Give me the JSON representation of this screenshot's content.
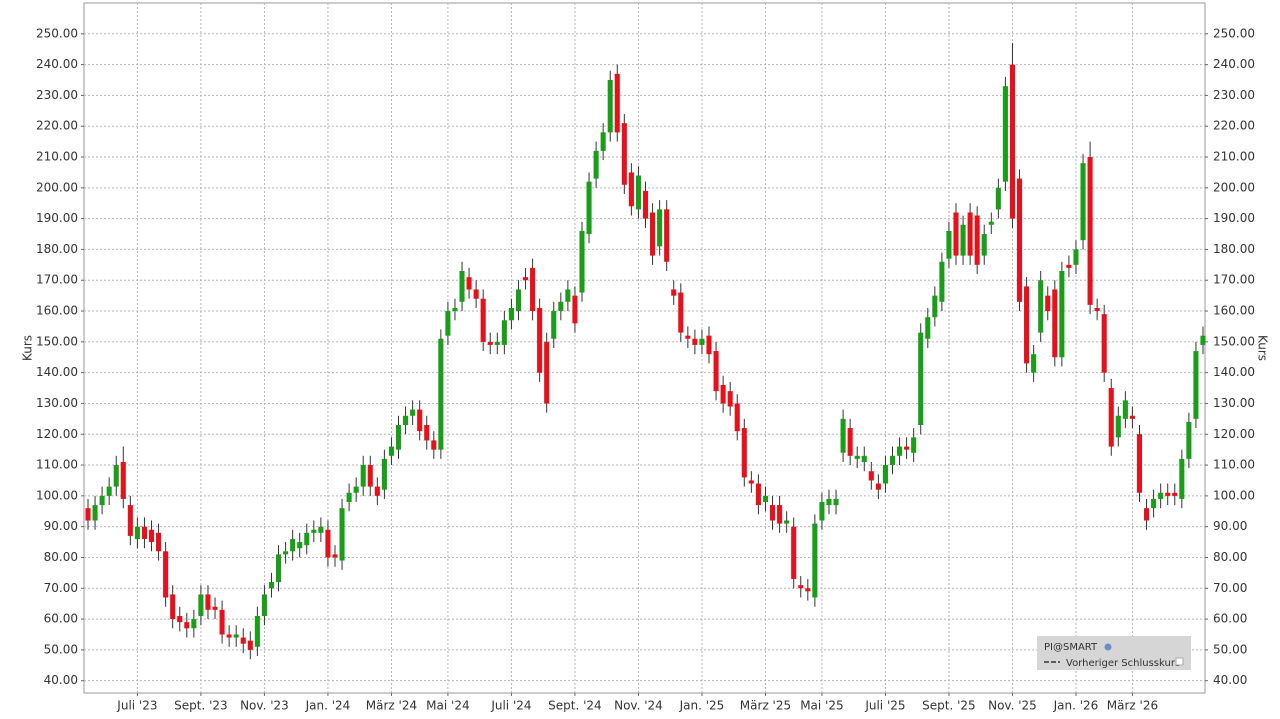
{
  "chart_data": {
    "type": "candlestick",
    "y_label": "Kurs",
    "legend": {
      "title": "PI@SMART",
      "entries": [
        "Vorheriger Schlusskurs"
      ]
    },
    "up_color": "#1a9e1a",
    "down_color": "#e8101a",
    "grid": true,
    "categories": [
      null,
      null,
      null,
      null,
      null,
      null,
      null,
      "Juli '23",
      null,
      null,
      null,
      null,
      null,
      null,
      null,
      null,
      "Sept. '23",
      null,
      null,
      null,
      null,
      null,
      null,
      null,
      null,
      "Nov. '23",
      null,
      null,
      null,
      null,
      null,
      null,
      null,
      null,
      "Jan. '24",
      null,
      null,
      null,
      null,
      null,
      null,
      null,
      null,
      "März '24",
      null,
      null,
      null,
      null,
      null,
      null,
      null,
      "Mai '24",
      null,
      null,
      null,
      null,
      null,
      null,
      null,
      null,
      "Juli '24",
      null,
      null,
      null,
      null,
      null,
      null,
      null,
      null,
      "Sept. '24",
      null,
      null,
      null,
      null,
      null,
      null,
      null,
      null,
      "Nov. '24",
      null,
      null,
      null,
      null,
      null,
      null,
      null,
      null,
      "Jan. '25",
      null,
      null,
      null,
      null,
      null,
      null,
      null,
      null,
      "März '25",
      null,
      null,
      null,
      null,
      null,
      null,
      null,
      "Mai '25",
      null,
      null,
      null,
      null,
      null,
      null,
      null,
      null,
      "Juli '25",
      null,
      null,
      null,
      null,
      null,
      null,
      null,
      null,
      "Sept. '25",
      null,
      null,
      null,
      null,
      null,
      null,
      null,
      null,
      "Nov. '25",
      null,
      null,
      null,
      null,
      null,
      null,
      null,
      null,
      "Jan. '26",
      null,
      null,
      null,
      null,
      null,
      null,
      null,
      "März '26",
      null,
      null,
      null,
      null,
      null,
      null,
      null,
      null,
      null,
      null
    ],
    "open": [
      96,
      92,
      97,
      100,
      103,
      111,
      97,
      86,
      90,
      89,
      88,
      82,
      68,
      61,
      59,
      57,
      61,
      68,
      64,
      63,
      55,
      54,
      54,
      53,
      51,
      61,
      70,
      72,
      81,
      82,
      83,
      84,
      88,
      88,
      89,
      81,
      79,
      98,
      101,
      103,
      110,
      103,
      102,
      113,
      115,
      123,
      126,
      128,
      123,
      118,
      115,
      152,
      160,
      163,
      171,
      167,
      164,
      150,
      149,
      149,
      157,
      160,
      171,
      174,
      161,
      150,
      151,
      160,
      163,
      165,
      166,
      185,
      203,
      212,
      218,
      237,
      221,
      205,
      193,
      199,
      192,
      181,
      193,
      167,
      166,
      152,
      151,
      149,
      152,
      147,
      136,
      134,
      130,
      122,
      105,
      104,
      98,
      97,
      97,
      91,
      90,
      71,
      70,
      67,
      92,
      97,
      97,
      114,
      122,
      112,
      111,
      108,
      104,
      104,
      110,
      113,
      116,
      114,
      123,
      151,
      158,
      163,
      177,
      192,
      178,
      192,
      191,
      178,
      188,
      193,
      202,
      240,
      203,
      168,
      140,
      153,
      165,
      167,
      145,
      175,
      175,
      183,
      210,
      161,
      159,
      135,
      119,
      125,
      126,
      120,
      96,
      96,
      99,
      101,
      101,
      99,
      112,
      125,
      149
    ],
    "high": [
      99,
      100,
      103,
      106,
      113,
      116,
      100,
      93,
      93,
      92,
      91,
      85,
      71,
      64,
      62,
      63,
      71,
      71,
      67,
      66,
      58,
      58,
      57,
      56,
      64,
      71,
      75,
      84,
      85,
      89,
      88,
      91,
      92,
      93,
      92,
      84,
      99,
      104,
      106,
      113,
      113,
      106,
      115,
      119,
      126,
      129,
      131,
      131,
      126,
      121,
      154,
      163,
      164,
      176,
      174,
      170,
      167,
      153,
      153,
      160,
      164,
      170,
      174,
      177,
      164,
      153,
      163,
      166,
      170,
      168,
      189,
      205,
      215,
      221,
      238,
      240,
      224,
      208,
      207,
      202,
      195,
      196,
      196,
      170,
      169,
      155,
      154,
      154,
      155,
      150,
      139,
      137,
      133,
      125,
      108,
      107,
      103,
      100,
      100,
      95,
      93,
      74,
      73,
      94,
      101,
      102,
      102,
      128,
      125,
      116,
      116,
      111,
      107,
      113,
      116,
      119,
      119,
      122,
      156,
      161,
      168,
      179,
      189,
      195,
      191,
      195,
      194,
      188,
      192,
      203,
      236,
      247,
      206,
      171,
      149,
      173,
      168,
      170,
      176,
      178,
      183,
      211,
      215,
      164,
      162,
      138,
      129,
      134,
      129,
      123,
      99,
      102,
      104,
      104,
      104,
      115,
      127,
      150,
      155
    ],
    "low": [
      89,
      89,
      94,
      97,
      100,
      96,
      84,
      83,
      83,
      82,
      79,
      64,
      57,
      56,
      54,
      54,
      58,
      60,
      60,
      52,
      51,
      51,
      49,
      47,
      48,
      58,
      67,
      69,
      78,
      79,
      80,
      81,
      85,
      85,
      77,
      77,
      76,
      95,
      98,
      100,
      100,
      97,
      99,
      110,
      112,
      120,
      123,
      118,
      115,
      112,
      112,
      149,
      157,
      160,
      164,
      161,
      147,
      146,
      146,
      146,
      154,
      157,
      167,
      157,
      137,
      127,
      148,
      157,
      160,
      153,
      163,
      182,
      200,
      209,
      215,
      215,
      198,
      191,
      190,
      187,
      175,
      178,
      173,
      162,
      150,
      148,
      146,
      146,
      143,
      131,
      127,
      126,
      118,
      103,
      101,
      94,
      95,
      89,
      88,
      88,
      70,
      67,
      66,
      64,
      89,
      94,
      94,
      111,
      110,
      109,
      108,
      102,
      99,
      101,
      107,
      110,
      112,
      111,
      120,
      148,
      155,
      160,
      174,
      175,
      175,
      175,
      172,
      175,
      185,
      190,
      199,
      187,
      160,
      140,
      137,
      150,
      157,
      142,
      142,
      171,
      172,
      180,
      159,
      157,
      137,
      113,
      116,
      122,
      122,
      98,
      89,
      93,
      96,
      97,
      97,
      96,
      109,
      122,
      146
    ],
    "close": [
      92,
      97,
      100,
      103,
      110,
      99,
      87,
      90,
      86,
      85,
      82,
      67,
      60,
      59,
      57,
      60,
      68,
      63,
      63,
      55,
      54,
      55,
      52,
      50,
      61,
      68,
      72,
      81,
      82,
      86,
      85,
      88,
      89,
      90,
      80,
      80,
      96,
      101,
      103,
      110,
      103,
      100,
      112,
      116,
      123,
      126,
      128,
      121,
      118,
      115,
      151,
      160,
      161,
      173,
      167,
      164,
      150,
      149,
      150,
      157,
      161,
      167,
      170,
      160,
      140,
      130,
      160,
      163,
      167,
      156,
      186,
      202,
      212,
      218,
      235,
      218,
      201,
      194,
      204,
      190,
      178,
      193,
      176,
      165,
      153,
      151,
      149,
      151,
      146,
      134,
      130,
      129,
      121,
      106,
      104,
      97,
      100,
      92,
      91,
      92,
      73,
      70,
      69,
      91,
      98,
      99,
      99,
      125,
      113,
      113,
      113,
      105,
      102,
      110,
      113,
      116,
      115,
      119,
      153,
      158,
      165,
      176,
      186,
      178,
      188,
      178,
      175,
      185,
      189,
      200,
      233,
      190,
      163,
      143,
      146,
      170,
      160,
      145,
      173,
      174,
      180,
      208,
      162,
      160,
      140,
      116,
      126,
      131,
      125,
      101,
      92,
      99,
      101,
      100,
      100,
      112,
      124,
      147,
      152
    ],
    "ylim": [
      36,
      260
    ],
    "yticks": [
      {
        "value": 40,
        "label": "40.00"
      },
      {
        "value": 50,
        "label": "50.00"
      },
      {
        "value": 60,
        "label": "60.00"
      },
      {
        "value": 70,
        "label": "70.00"
      },
      {
        "value": 80,
        "label": "80.00"
      },
      {
        "value": 90,
        "label": "90.00"
      },
      {
        "value": 100,
        "label": "100.00"
      },
      {
        "value": 110,
        "label": "110.00"
      },
      {
        "value": 120,
        "label": "120.00"
      },
      {
        "value": 130,
        "label": "130.00"
      },
      {
        "value": 140,
        "label": "140.00"
      },
      {
        "value": 150,
        "label": "150.00"
      },
      {
        "value": 160,
        "label": "160.00"
      },
      {
        "value": 170,
        "label": "170.00"
      },
      {
        "value": 180,
        "label": "180.00"
      },
      {
        "value": 190,
        "label": "190.00"
      },
      {
        "value": 200,
        "label": "200.00"
      },
      {
        "value": 210,
        "label": "210.00"
      },
      {
        "value": 220,
        "label": "220.00"
      },
      {
        "value": 230,
        "label": "230.00"
      },
      {
        "value": 240,
        "label": "240.00"
      },
      {
        "value": 250,
        "label": "250.00"
      }
    ]
  }
}
